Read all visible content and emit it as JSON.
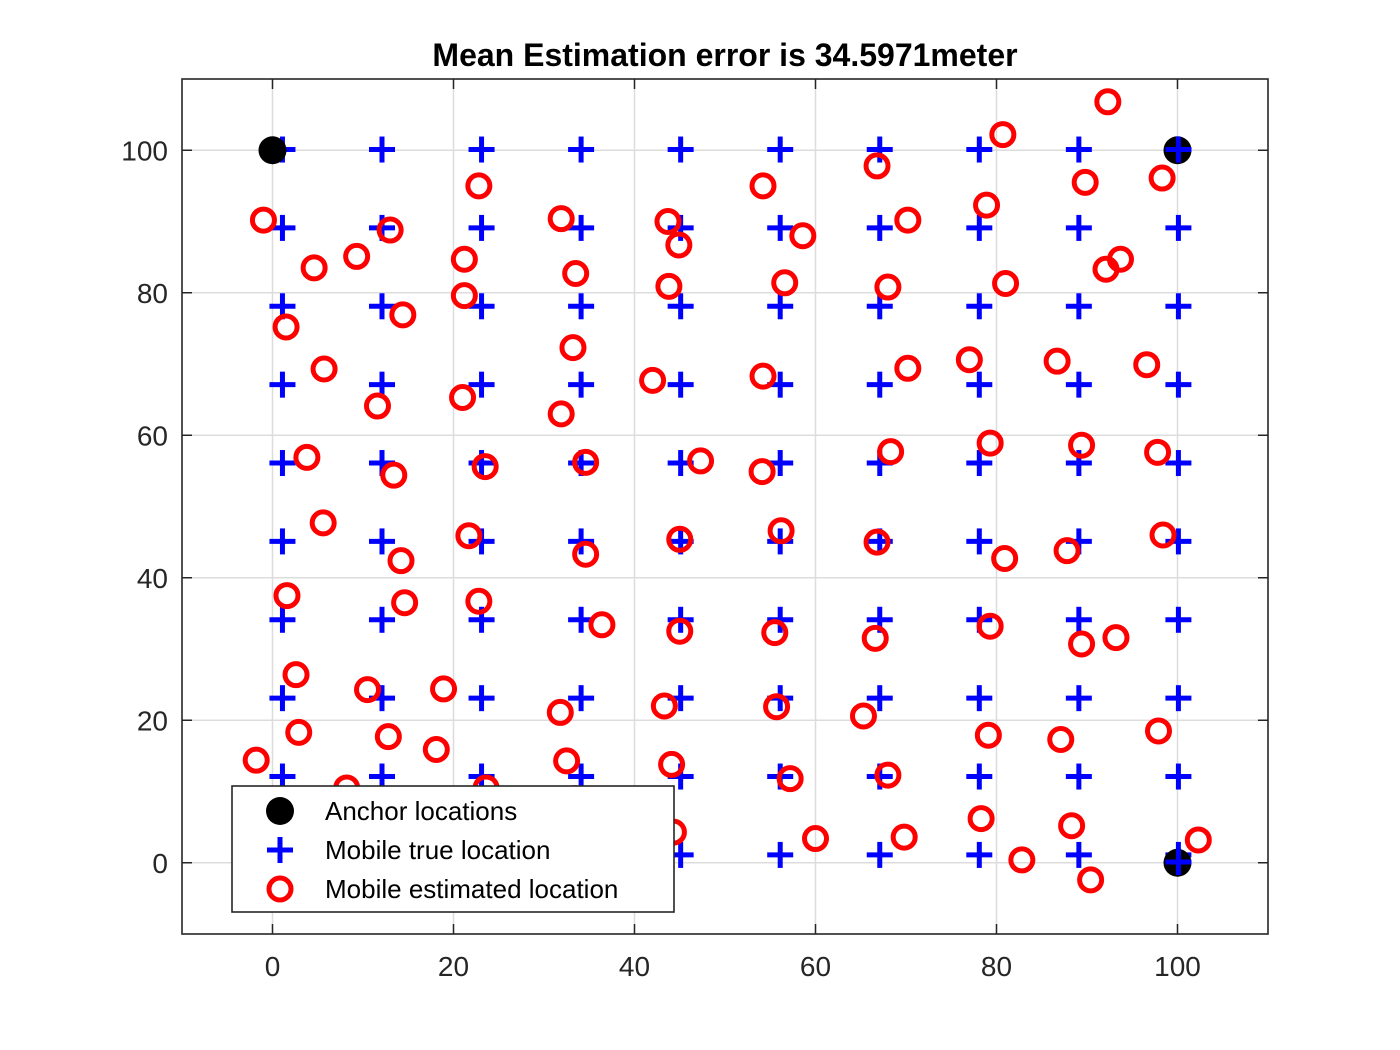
{
  "chart_data": {
    "type": "scatter",
    "title": "Mean Estimation error is 34.5971meter",
    "xlabel": "",
    "ylabel": "",
    "xlim": [
      -10,
      110
    ],
    "ylim": [
      -10,
      110
    ],
    "xticks": [
      0,
      20,
      40,
      60,
      80,
      100
    ],
    "yticks": [
      0,
      20,
      40,
      60,
      80,
      100
    ],
    "grid": true,
    "legend_position": "bottom-left",
    "colors": {
      "anchor": "#000000",
      "true": "#0000ff",
      "estimated": "#ff0000",
      "grid": "#dcdcdc",
      "axes": "#262626"
    },
    "series": [
      {
        "name": "Anchor locations",
        "marker": "filled-circle",
        "color": "#000000",
        "points": [
          [
            0,
            100
          ],
          [
            100,
            100
          ],
          [
            100,
            0
          ]
        ]
      },
      {
        "name": "Mobile true location",
        "marker": "plus",
        "color": "#0000ff",
        "grid_x": [
          1.1,
          12.1,
          23.1,
          34.1,
          45.1,
          56.1,
          67.1,
          78.1,
          89.1,
          100.1
        ],
        "grid_y": [
          1.1,
          12.1,
          23.1,
          34.1,
          45.1,
          56.1,
          67.1,
          78.1,
          89.1,
          100.1
        ]
      },
      {
        "name": "Mobile estimated location",
        "marker": "open-circle",
        "color": "#ff0000",
        "points": [
          [
            92.3,
            106.8
          ],
          [
            80.7,
            102.2
          ],
          [
            66.8,
            97.8
          ],
          [
            98.3,
            96.1
          ],
          [
            89.8,
            95.5
          ],
          [
            54.2,
            95.0
          ],
          [
            22.8,
            95.0
          ],
          [
            78.9,
            92.3
          ],
          [
            -1.0,
            90.2
          ],
          [
            31.9,
            90.4
          ],
          [
            43.7,
            90.0
          ],
          [
            70.2,
            90.2
          ],
          [
            13.0,
            88.8
          ],
          [
            58.6,
            88.0
          ],
          [
            44.9,
            86.7
          ],
          [
            9.3,
            85.1
          ],
          [
            21.2,
            84.7
          ],
          [
            4.6,
            83.5
          ],
          [
            92.1,
            83.3
          ],
          [
            93.7,
            84.7
          ],
          [
            33.5,
            82.7
          ],
          [
            56.6,
            81.4
          ],
          [
            81.0,
            81.3
          ],
          [
            43.8,
            80.9
          ],
          [
            68.0,
            80.8
          ],
          [
            21.2,
            79.6
          ],
          [
            14.4,
            76.9
          ],
          [
            1.5,
            75.2
          ],
          [
            33.2,
            72.3
          ],
          [
            77.0,
            70.6
          ],
          [
            86.7,
            70.4
          ],
          [
            96.6,
            69.9
          ],
          [
            5.7,
            69.3
          ],
          [
            70.2,
            69.4
          ],
          [
            54.2,
            68.3
          ],
          [
            42.0,
            67.7
          ],
          [
            21.0,
            65.3
          ],
          [
            11.6,
            64.1
          ],
          [
            31.9,
            63.0
          ],
          [
            79.3,
            58.9
          ],
          [
            89.4,
            58.6
          ],
          [
            97.8,
            57.6
          ],
          [
            68.3,
            57.7
          ],
          [
            3.8,
            56.9
          ],
          [
            47.3,
            56.4
          ],
          [
            34.6,
            56.2
          ],
          [
            23.5,
            55.6
          ],
          [
            54.1,
            54.9
          ],
          [
            13.4,
            54.4
          ],
          [
            5.6,
            47.7
          ],
          [
            56.2,
            46.6
          ],
          [
            98.4,
            46.0
          ],
          [
            21.7,
            45.9
          ],
          [
            45.0,
            45.4
          ],
          [
            66.8,
            45.0
          ],
          [
            87.8,
            43.8
          ],
          [
            34.6,
            43.3
          ],
          [
            80.9,
            42.7
          ],
          [
            14.2,
            42.4
          ],
          [
            1.6,
            37.5
          ],
          [
            22.8,
            36.7
          ],
          [
            14.6,
            36.5
          ],
          [
            36.4,
            33.4
          ],
          [
            79.3,
            33.2
          ],
          [
            45.0,
            32.5
          ],
          [
            55.5,
            32.3
          ],
          [
            66.6,
            31.5
          ],
          [
            93.2,
            31.6
          ],
          [
            89.4,
            30.7
          ],
          [
            2.6,
            26.4
          ],
          [
            10.5,
            24.3
          ],
          [
            18.9,
            24.4
          ],
          [
            43.3,
            22.0
          ],
          [
            55.7,
            21.9
          ],
          [
            31.8,
            21.1
          ],
          [
            65.3,
            20.6
          ],
          [
            97.9,
            18.5
          ],
          [
            2.9,
            18.3
          ],
          [
            12.8,
            17.7
          ],
          [
            79.1,
            17.9
          ],
          [
            87.1,
            17.3
          ],
          [
            18.1,
            15.9
          ],
          [
            -1.8,
            14.4
          ],
          [
            32.5,
            14.3
          ],
          [
            44.1,
            13.8
          ],
          [
            68.0,
            12.3
          ],
          [
            57.2,
            11.8
          ],
          [
            8.2,
            10.5
          ],
          [
            23.6,
            10.5
          ],
          [
            33.4,
            9.0
          ],
          [
            78.3,
            6.2
          ],
          [
            88.3,
            5.2
          ],
          [
            44.3,
            4.3
          ],
          [
            60.0,
            3.4
          ],
          [
            69.8,
            3.6
          ],
          [
            102.3,
            3.2
          ],
          [
            82.8,
            0.4
          ],
          [
            90.4,
            -2.4
          ]
        ]
      }
    ]
  }
}
